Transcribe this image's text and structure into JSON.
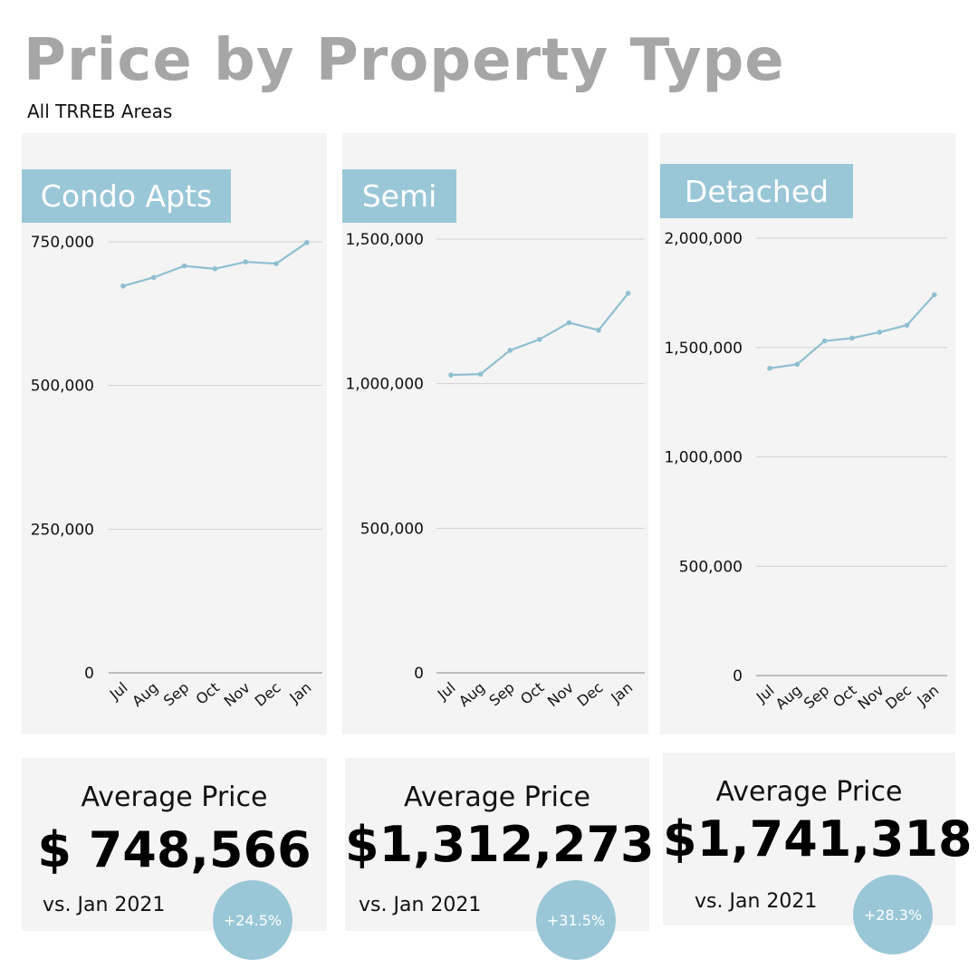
{
  "header": {
    "title": "Price by Property Type",
    "subtitle": "All TRREB Areas"
  },
  "colors": {
    "accent": "#9ac7d8",
    "panel_bg": "#f4f4f4",
    "title_gray": "#a6a6a6"
  },
  "chart_data": [
    {
      "type": "line",
      "title": "Condo Apts",
      "categories": [
        "Jul",
        "Aug",
        "Sep",
        "Oct",
        "Nov",
        "Dec",
        "Jan"
      ],
      "values": [
        673000,
        688000,
        708000,
        703000,
        715000,
        712000,
        748566
      ],
      "ylim": [
        0,
        750000
      ],
      "yticks": [
        0,
        250000,
        500000,
        750000
      ],
      "ytick_labels": [
        "0",
        "250,000",
        "500,000",
        "750,000"
      ],
      "grid": true
    },
    {
      "type": "line",
      "title": "Semi",
      "categories": [
        "Jul",
        "Aug",
        "Sep",
        "Oct",
        "Nov",
        "Dec",
        "Jan"
      ],
      "values": [
        1030000,
        1033000,
        1115000,
        1153000,
        1211000,
        1185000,
        1312273
      ],
      "ylim": [
        0,
        1500000
      ],
      "yticks": [
        0,
        500000,
        1000000,
        1500000
      ],
      "ytick_labels": [
        "0",
        "500,000",
        "1,000,000",
        "1,500,000"
      ],
      "grid": true
    },
    {
      "type": "line",
      "title": "Detached",
      "categories": [
        "Jul",
        "Aug",
        "Sep",
        "Oct",
        "Nov",
        "Dec",
        "Jan"
      ],
      "values": [
        1405000,
        1423000,
        1530000,
        1543000,
        1570000,
        1602000,
        1741318
      ],
      "ylim": [
        0,
        2000000
      ],
      "yticks": [
        0,
        500000,
        1000000,
        1500000,
        2000000
      ],
      "ytick_labels": [
        "0",
        "500,000",
        "1,000,000",
        "1,500,000",
        "2,000,000"
      ],
      "grid": true
    }
  ],
  "stats": [
    {
      "label": "Average Price",
      "value": "$ 748,566",
      "comparison": "vs. Jan 2021",
      "change": "+24.5%"
    },
    {
      "label": "Average Price",
      "value": "$1,312,273",
      "comparison": "vs. Jan 2021",
      "change": "+31.5%"
    },
    {
      "label": "Average Price",
      "value": "$1,741,318",
      "comparison": "vs. Jan 2021",
      "change": "+28.3%"
    }
  ]
}
